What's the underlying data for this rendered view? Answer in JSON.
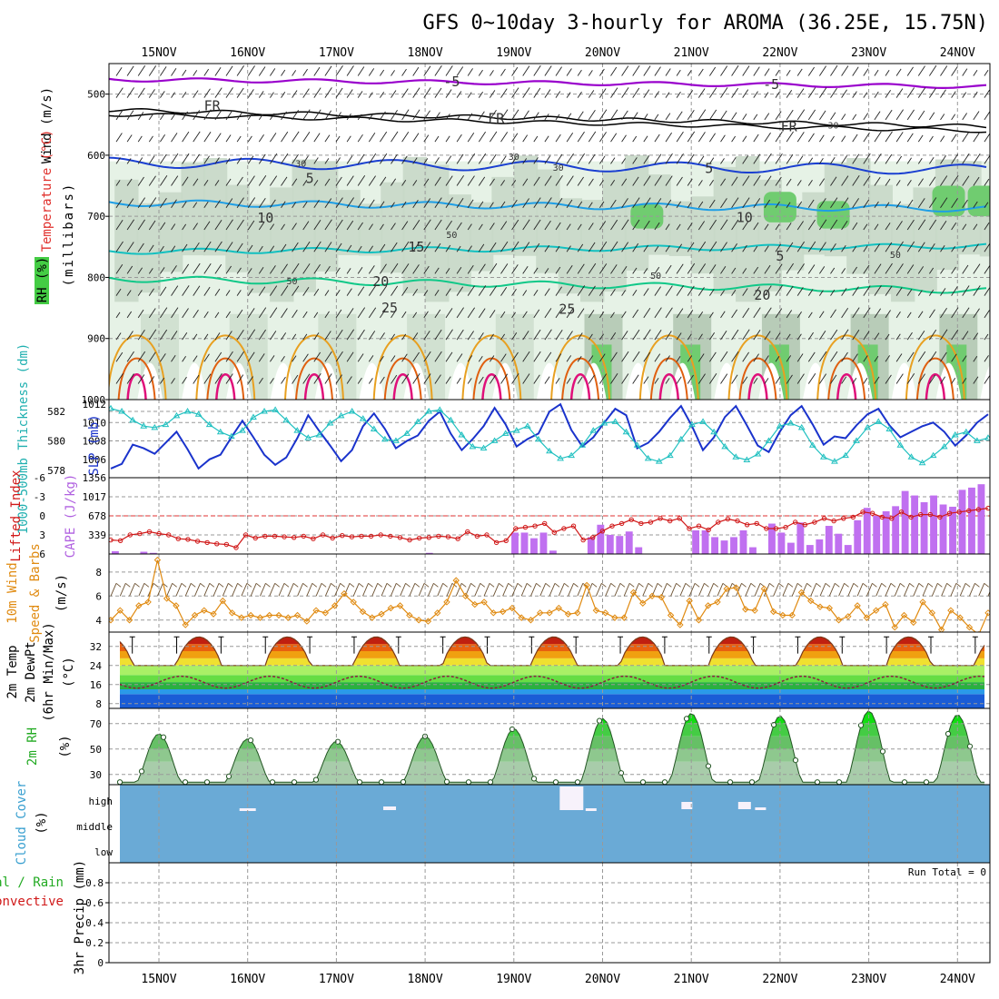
{
  "title": "GFS 0~10day 3-hourly for AROMA (36.25E, 15.75N)",
  "dates": [
    "15NOV",
    "16NOV",
    "17NOV",
    "18NOV",
    "19NOV",
    "20NOV",
    "21NOV",
    "22NOV",
    "23NOV",
    "24NOV"
  ],
  "colors": {
    "temp_purple": "#9900cc",
    "fr_black": "#000000",
    "temp_blue": "#1a3fd1",
    "temp_lightblue": "#1e9ee6",
    "temp_cyan": "#12c0c0",
    "temp_green": "#10c888",
    "temp_orange": "#e8a020",
    "temp_darkorange": "#e06010",
    "temp_magenta": "#e0107a",
    "slp": "#1a33cc",
    "thickness": "#20c0c0",
    "cape": "#c070f0",
    "lifted": "#d01818",
    "wind10m": "#e08a10",
    "cloud": "#6aaad6",
    "rh_fill": "#44cc44"
  },
  "chart_data": [
    {
      "panel": "upper_air",
      "type": "contour",
      "ylabel_parts": [
        "Wind (m/s)",
        "Temperature (°C)",
        "RH (%)",
        "(millibars)"
      ],
      "yticks": [
        500,
        600,
        700,
        800,
        900,
        1000
      ],
      "ylim": [
        1000,
        450
      ],
      "contour_labels": [
        {
          "text": "-5",
          "day": 3.3,
          "p": 480
        },
        {
          "text": "-5",
          "day": 6.9,
          "p": 484
        },
        {
          "text": "FR",
          "day": 0.6,
          "p": 519
        },
        {
          "text": "FR",
          "day": 3.8,
          "p": 540
        },
        {
          "text": "FR",
          "day": 7.1,
          "p": 553
        },
        {
          "text": "5",
          "day": 1.7,
          "p": 638
        },
        {
          "text": "5",
          "day": 6.2,
          "p": 622
        },
        {
          "text": "10",
          "day": 1.2,
          "p": 703
        },
        {
          "text": "10",
          "day": 6.6,
          "p": 702
        },
        {
          "text": "15",
          "day": 2.9,
          "p": 750
        },
        {
          "text": "5",
          "day": 7.0,
          "p": 765
        },
        {
          "text": "20",
          "day": 2.5,
          "p": 807
        },
        {
          "text": "20",
          "day": 6.8,
          "p": 829
        },
        {
          "text": "25",
          "day": 2.6,
          "p": 850
        },
        {
          "text": "25",
          "day": 4.6,
          "p": 852
        },
        {
          "text": "30",
          "day": 1.6,
          "p": 611
        },
        {
          "text": "30",
          "day": 4.0,
          "p": 600
        },
        {
          "text": "30",
          "day": 4.5,
          "p": 618
        },
        {
          "text": "30",
          "day": 7.6,
          "p": 549
        },
        {
          "text": "50",
          "day": 3.3,
          "p": 728
        },
        {
          "text": "50",
          "day": 1.5,
          "p": 804
        },
        {
          "text": "50",
          "day": 5.6,
          "p": 795
        },
        {
          "text": "50",
          "day": 8.3,
          "p": 761
        }
      ]
    },
    {
      "panel": "slp_thickness",
      "type": "line",
      "ylabel_left": "1000-500mb Thickness (dm)",
      "ylabel_right": "SLP (mb)",
      "yticks_left": [
        578,
        580,
        582
      ],
      "yticks_right": [
        1006,
        1008,
        1010,
        1012
      ],
      "ylim_left": [
        577.5,
        582.8
      ],
      "ylim_right": [
        1004,
        1012.5
      ],
      "slp": [
        1005.0,
        1005.5,
        1007.6,
        1007.2,
        1006.6,
        1007.8,
        1009.0,
        1007.1,
        1005.0,
        1006.0,
        1006.5,
        1008.4,
        1010.2,
        1008.4,
        1006.5,
        1005.4,
        1006.2,
        1008.3,
        1010.8,
        1009.1,
        1007.5,
        1005.8,
        1007.0,
        1009.6,
        1011.0,
        1009.3,
        1007.2,
        1008.0,
        1008.6,
        1010.2,
        1011.2,
        1008.8,
        1007.0,
        1008.2,
        1009.6,
        1011.6,
        1009.8,
        1007.4,
        1008.2,
        1008.8,
        1011.2,
        1012.0,
        1009.2,
        1007.4,
        1008.4,
        1010.0,
        1011.5,
        1010.8,
        1007.2,
        1007.8,
        1009.0,
        1010.5,
        1011.8,
        1009.6,
        1007.0,
        1008.4,
        1010.6,
        1011.8,
        1009.7,
        1007.5,
        1006.8,
        1009.0,
        1010.8,
        1011.8,
        1009.8,
        1007.6,
        1008.5,
        1008.3,
        1009.7,
        1010.9,
        1011.5,
        1009.7,
        1008.4,
        1009.0,
        1009.6,
        1010.0,
        1009.0,
        1007.5,
        1008.6,
        1010.0,
        1010.9
      ],
      "thickness": [
        582.2,
        582.0,
        581.4,
        581.0,
        580.9,
        581.1,
        581.7,
        582.0,
        581.8,
        581.1,
        580.6,
        580.3,
        580.7,
        581.6,
        582.0,
        582.1,
        581.4,
        580.7,
        580.2,
        580.4,
        581.2,
        581.7,
        582.0,
        581.5,
        580.8,
        580.1,
        580.0,
        580.5,
        581.3,
        582.0,
        582.1,
        581.4,
        580.4,
        579.6,
        579.5,
        580.0,
        580.5,
        580.7,
        581.0,
        580.1,
        579.3,
        578.8,
        579.0,
        579.7,
        580.7,
        581.2,
        581.3,
        580.6,
        579.7,
        578.8,
        578.6,
        579.0,
        580.1,
        581.1,
        581.3,
        580.6,
        579.6,
        578.9,
        578.7,
        579.1,
        580.0,
        581.0,
        581.2,
        580.9,
        579.7,
        578.9,
        578.6,
        579.0,
        580.0,
        580.9,
        581.3,
        580.8,
        579.7,
        578.9,
        578.5,
        579.0,
        579.6,
        580.4,
        580.6,
        580.0,
        580.2
      ]
    },
    {
      "panel": "cape_li",
      "type": "bar+line",
      "ylabel_left": "Lifted Index",
      "ylabel_right": "CAPE (J/kg)",
      "yticks_left": [
        -6,
        -3,
        0,
        3,
        6
      ],
      "yticks_right": [
        339,
        678,
        1017,
        1356
      ],
      "ylim_left": [
        6,
        -6
      ],
      "ylim_right": [
        0,
        1356
      ],
      "cape": [
        50,
        0,
        0,
        40,
        20,
        0,
        0,
        0,
        0,
        0,
        0,
        0,
        0,
        0,
        0,
        0,
        0,
        0,
        0,
        0,
        0,
        0,
        0,
        0,
        0,
        0,
        0,
        0,
        0,
        0,
        0,
        0,
        0,
        20,
        0,
        0,
        0,
        0,
        0,
        0,
        0,
        0,
        380,
        380,
        280,
        380,
        60,
        0,
        0,
        0,
        300,
        520,
        340,
        320,
        400,
        120,
        0,
        0,
        0,
        0,
        0,
        420,
        420,
        300,
        240,
        300,
        420,
        120,
        0,
        540,
        380,
        200,
        560,
        160,
        260,
        500,
        360,
        160,
        600,
        820,
        680,
        760,
        850,
        1120,
        1040,
        920,
        1040,
        880,
        840,
        1140,
        1180,
        1240
      ],
      "lifted_index": [
        3.8,
        3.9,
        3.0,
        2.8,
        2.5,
        2.8,
        3.0,
        3.6,
        3.7,
        4.0,
        4.2,
        4.4,
        4.5,
        5.0,
        3.0,
        3.5,
        3.2,
        3.2,
        3.3,
        3.4,
        3.2,
        3.6,
        3.0,
        3.5,
        3.1,
        3.3,
        3.2,
        3.2,
        3.0,
        3.2,
        3.4,
        3.8,
        3.5,
        3.4,
        3.2,
        3.3,
        3.6,
        2.5,
        3.2,
        3.0,
        4.2,
        3.9,
        2.0,
        1.8,
        1.6,
        1.2,
        2.6,
        2.0,
        1.6,
        3.8,
        3.4,
        2.4,
        1.6,
        1.2,
        0.6,
        1.2,
        1.0,
        0.4,
        0.8,
        0.4,
        2.0,
        1.6,
        2.2,
        1.0,
        0.5,
        0.8,
        1.4,
        1.2,
        2.0,
        2.0,
        1.8,
        1.0,
        1.4,
        1.0,
        0.4,
        0.8,
        0.4,
        0.2,
        -0.6,
        -0.4,
        0.2,
        0.4,
        -0.6,
        0.2,
        -0.2,
        -0.2,
        0.2,
        -0.4,
        -0.6,
        -0.8,
        -1.0,
        -1.2
      ]
    },
    {
      "panel": "wind10m",
      "type": "line",
      "ylabel_parts": [
        "10m Wind",
        "Speed & Barbs",
        "(m/s)"
      ],
      "yticks": [
        4,
        6,
        8
      ],
      "ylim": [
        3,
        9.5
      ],
      "speed": [
        4.0,
        4.8,
        4.0,
        5.2,
        5.5,
        9.0,
        5.8,
        5.2,
        3.6,
        4.4,
        4.8,
        4.5,
        5.6,
        4.6,
        4.2,
        4.4,
        4.2,
        4.4,
        4.4,
        4.2,
        4.4,
        3.9,
        4.8,
        4.6,
        5.2,
        6.2,
        5.5,
        4.7,
        4.2,
        4.5,
        5.0,
        5.2,
        4.4,
        4.0,
        3.9,
        4.6,
        5.5,
        7.3,
        6.0,
        5.3,
        5.5,
        4.6,
        4.7,
        5.0,
        4.2,
        4.0,
        4.6,
        4.6,
        5.0,
        4.5,
        4.6,
        6.9,
        4.8,
        4.6,
        4.2,
        4.2,
        6.3,
        5.4,
        6.0,
        5.9,
        4.4,
        3.6,
        5.6,
        4.0,
        5.2,
        5.5,
        6.6,
        6.7,
        4.9,
        4.8,
        6.6,
        4.7,
        4.4,
        4.4,
        6.3,
        5.6,
        5.1,
        5.0,
        4.0,
        4.3,
        5.2,
        4.2,
        4.8,
        5.3,
        3.4,
        4.4,
        3.8,
        5.5,
        4.6,
        3.2,
        4.8,
        4.2,
        3.4,
        2.8,
        4.6
      ]
    },
    {
      "panel": "temperature_2m",
      "type": "area",
      "ylabel_parts": [
        "2m Temp",
        "2m DewPt",
        "(6hr Min/Max)",
        "(°C)"
      ],
      "yticks": [
        8,
        16,
        24,
        32
      ],
      "ylim": [
        6,
        38
      ],
      "temp_day_peak": 36,
      "temp_night_min": 24,
      "dewpoint_mean": 17
    },
    {
      "panel": "rh_2m",
      "type": "area",
      "ylabel_parts": [
        "2m RH",
        "(%)"
      ],
      "yticks": [
        30,
        50,
        70
      ],
      "ylim": [
        22,
        82
      ],
      "rh_daily_peaks": [
        62,
        58,
        56,
        60,
        66,
        74,
        78,
        76,
        80,
        77
      ],
      "rh_min": 24
    },
    {
      "panel": "cloud_cover",
      "type": "blocks",
      "ylabel_parts": [
        "Cloud Cover",
        "(%)"
      ],
      "levels": [
        "high",
        "middle",
        "low"
      ]
    },
    {
      "panel": "precip_3hr",
      "type": "bar",
      "ylabel_parts": [
        "Total / Rain",
        "Convective",
        "3hr Precip (mm)"
      ],
      "yticks": [
        0,
        0.2,
        0.4,
        0.6,
        0.8
      ],
      "ylim": [
        0,
        1.0
      ],
      "values": [],
      "run_total_label": "Run Total = 0"
    }
  ]
}
